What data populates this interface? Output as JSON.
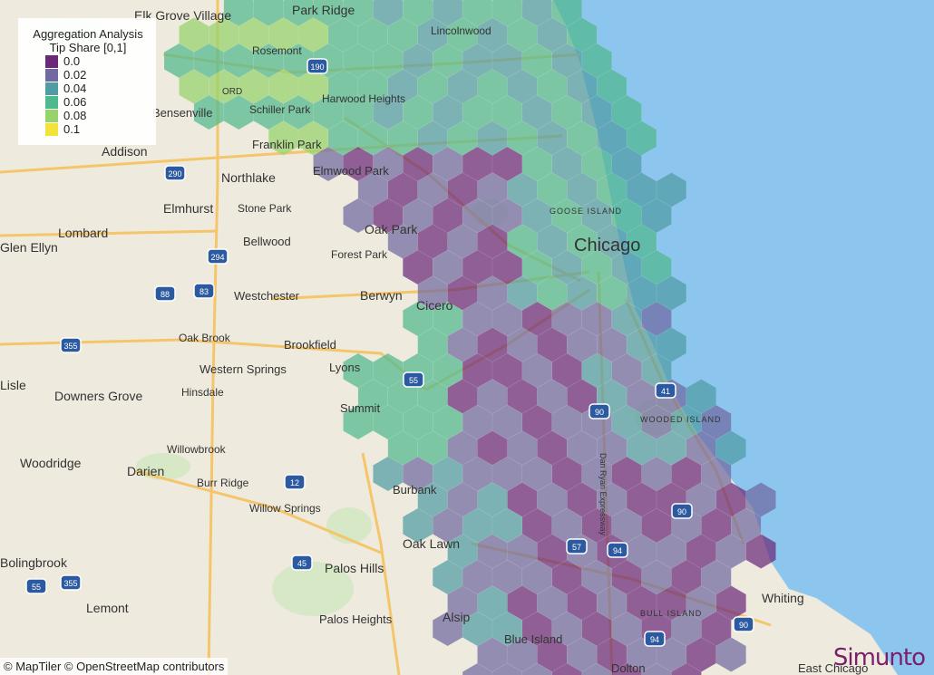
{
  "legend": {
    "title_line1": "Aggregation Analysis",
    "title_line2": "Tip Share [0,1]",
    "items": [
      {
        "label": "0.0",
        "color": "#6a2a78"
      },
      {
        "label": "0.02",
        "color": "#6f6aa0"
      },
      {
        "label": "0.04",
        "color": "#4f9ca4"
      },
      {
        "label": "0.06",
        "color": "#4fb98e"
      },
      {
        "label": "0.08",
        "color": "#96d36a"
      },
      {
        "label": "0.1",
        "color": "#f2e23a"
      }
    ]
  },
  "attribution": "© MapTiler © OpenStreetMap contributors",
  "brand": "Simunto",
  "colors": {
    "water": "#8cc6ef",
    "land": "#efeade",
    "road": "#f4c56a"
  },
  "places": [
    {
      "name": "Elk Grove Village",
      "size": 14
    },
    {
      "name": "Park Ridge",
      "size": 14
    },
    {
      "name": "Lincolnwood",
      "size": 12
    },
    {
      "name": "Rosemont",
      "size": 12
    },
    {
      "name": "ORD",
      "size": 10
    },
    {
      "name": "Harwood Heights",
      "size": 12
    },
    {
      "name": "Bensenville",
      "size": 13
    },
    {
      "name": "Schiller Park",
      "size": 12
    },
    {
      "name": "Franklin Park",
      "size": 13
    },
    {
      "name": "Addison",
      "size": 14
    },
    {
      "name": "Northlake",
      "size": 14
    },
    {
      "name": "Elmwood Park",
      "size": 13
    },
    {
      "name": "Elmhurst",
      "size": 14
    },
    {
      "name": "Stone Park",
      "size": 12
    },
    {
      "name": "Elk Grove",
      "size": 1
    },
    {
      "name": "Lombard",
      "size": 14
    },
    {
      "name": "Bellwood",
      "size": 13
    },
    {
      "name": "Oak Park",
      "size": 14
    },
    {
      "name": "Forest Park",
      "size": 12
    },
    {
      "name": "Glen Ellyn",
      "size": 14
    },
    {
      "name": "Westchester",
      "size": 13
    },
    {
      "name": "Berwyn",
      "size": 14
    },
    {
      "name": "Cicero",
      "size": 14
    },
    {
      "name": "Oak Brook",
      "size": 12
    },
    {
      "name": "Brookfield",
      "size": 13
    },
    {
      "name": "Western Springs",
      "size": 13
    },
    {
      "name": "Lyons",
      "size": 13
    },
    {
      "name": "Lisle",
      "size": 14
    },
    {
      "name": "Downers Grove",
      "size": 14
    },
    {
      "name": "Hinsdale",
      "size": 12
    },
    {
      "name": "Summit",
      "size": 13
    },
    {
      "name": "Willowbrook",
      "size": 12
    },
    {
      "name": "Woodridge",
      "size": 14
    },
    {
      "name": "Darien",
      "size": 14
    },
    {
      "name": "Burr Ridge",
      "size": 12
    },
    {
      "name": "Burbank",
      "size": 13
    },
    {
      "name": "Willow Springs",
      "size": 12
    },
    {
      "name": "Oak Lawn",
      "size": 14
    },
    {
      "name": "Palos Hills",
      "size": 14
    },
    {
      "name": "Bolingbrook",
      "size": 14
    },
    {
      "name": "Lemont",
      "size": 14
    },
    {
      "name": "Palos Heights",
      "size": 13
    },
    {
      "name": "Alsip",
      "size": 14
    },
    {
      "name": "Blue Island",
      "size": 13
    },
    {
      "name": "Whiting",
      "size": 14
    },
    {
      "name": "East Chicago",
      "size": 13
    },
    {
      "name": "Dolton",
      "size": 13
    },
    {
      "name": "Chicago",
      "size": 20
    },
    {
      "name": "GOOSE ISLAND",
      "size": 9
    },
    {
      "name": "WOODED ISLAND",
      "size": 9
    },
    {
      "name": "BULL ISLAND",
      "size": 9
    },
    {
      "name": "Dan Ryan Expressway",
      "size": 9
    },
    {
      "name": "Elk Grove Village",
      "size": 1
    }
  ],
  "shields": [
    "190",
    "290",
    "294",
    "88",
    "83",
    "355",
    "55",
    "41",
    "90",
    "94",
    "57",
    "12",
    "45"
  ]
}
